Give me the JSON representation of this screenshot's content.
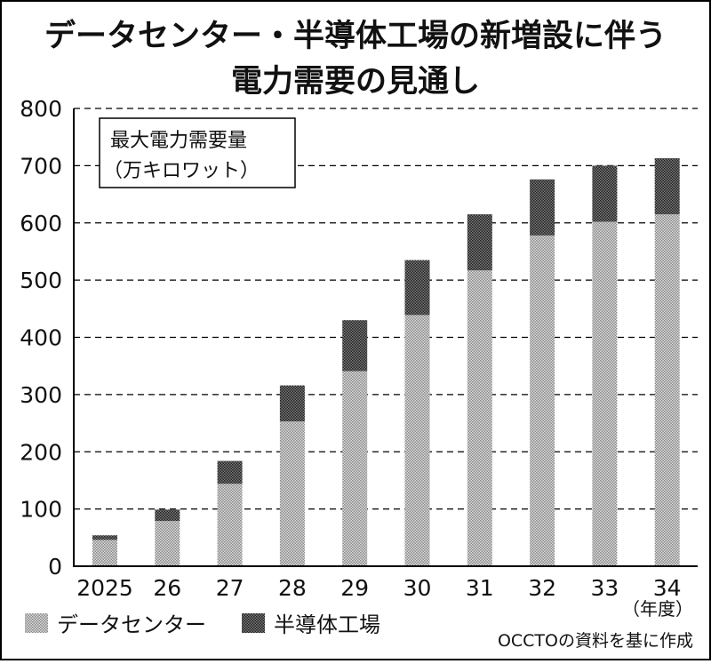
{
  "chart_data": {
    "type": "bar",
    "stacked": true,
    "title": [
      "データセンター・半導体工場の新増設に伴う",
      "電力需要の見通し"
    ],
    "ylabel": [
      "最大電力需要量",
      "（万キロワット）"
    ],
    "xlabel": "（年度）",
    "ylim": [
      0,
      800
    ],
    "yticks": [
      "0",
      "100",
      "200",
      "300",
      "400",
      "500",
      "600",
      "700",
      "800"
    ],
    "grid": true,
    "categories": [
      "2025",
      "26",
      "27",
      "28",
      "29",
      "30",
      "31",
      "32",
      "33",
      "34"
    ],
    "series": [
      {
        "name": "データセンター",
        "values": [
          46,
          79,
          144,
          253,
          341,
          439,
          517,
          578,
          602,
          615
        ],
        "color": "#b5b5b5"
      },
      {
        "name": "半導体工場",
        "values": [
          8,
          20,
          40,
          63,
          89,
          96,
          98,
          98,
          98,
          98
        ],
        "color": "#555555"
      }
    ],
    "legend_position": "bottom-left",
    "source": "OCCTOの資料を基に作成"
  }
}
